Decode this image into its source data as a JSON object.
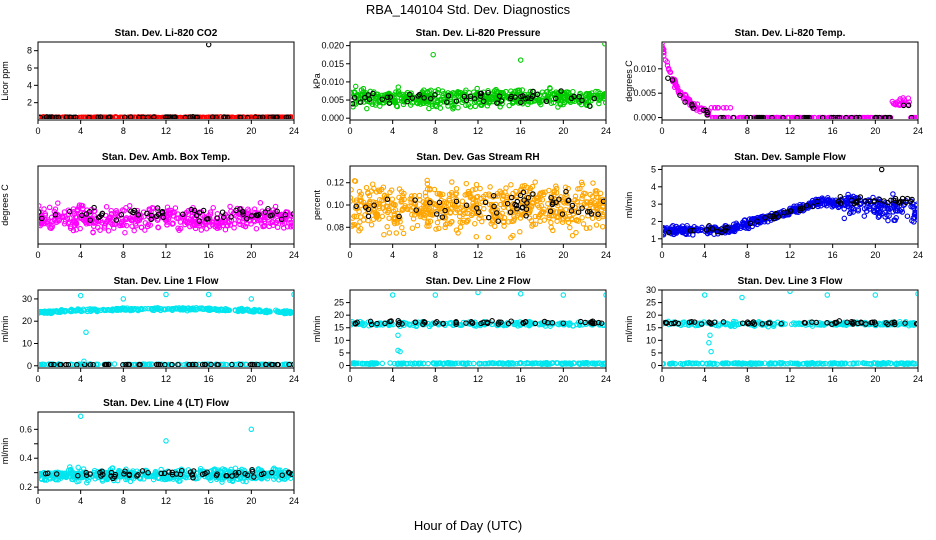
{
  "figure": {
    "title": "RBA_140104  Std. Dev. Diagnostics",
    "xlabel": "Hour of Day (UTC)"
  },
  "chart_data": [
    {
      "type": "scatter",
      "title": "Stan. Dev. Li-820 CO2",
      "ylabel": "Licor ppm",
      "xlim": [
        0,
        24
      ],
      "xticks": [
        0,
        4,
        8,
        12,
        16,
        20,
        24
      ],
      "ylim": [
        0,
        9
      ],
      "yticks": [
        2,
        4,
        6,
        8
      ],
      "series": [
        {
          "name": "red",
          "color": "#ff0000",
          "pattern": "band",
          "base": 0.3,
          "noise": 0.08,
          "n": 330
        },
        {
          "name": "black",
          "color": "#000000",
          "pattern": "band",
          "base": 0.32,
          "noise": 0.06,
          "n": 60
        },
        {
          "name": "outlier",
          "color": "#000000",
          "points": [
            [
              16.0,
              8.7
            ]
          ]
        }
      ]
    },
    {
      "type": "scatter",
      "title": "Stan. Dev. Li-820 Pressure",
      "ylabel": "kPa",
      "xlim": [
        0,
        24
      ],
      "xticks": [
        0,
        4,
        8,
        12,
        16,
        20,
        24
      ],
      "ylim": [
        -0.0005,
        0.021
      ],
      "yticks": [
        0.0,
        0.005,
        0.01,
        0.015,
        0.02
      ],
      "ytick_labels": [
        "0.000",
        "0.005",
        "0.010",
        "0.015",
        "0.020"
      ],
      "series": [
        {
          "name": "green",
          "color": "#00cc00",
          "pattern": "band",
          "base": 0.0055,
          "noise": 0.0035,
          "n": 520
        },
        {
          "name": "black",
          "color": "#000000",
          "pattern": "band",
          "base": 0.0055,
          "noise": 0.0025,
          "n": 55
        },
        {
          "name": "outliers",
          "color": "#00cc00",
          "points": [
            [
              7.8,
              0.0175
            ],
            [
              16.0,
              0.016
            ],
            [
              23.9,
              0.0205
            ]
          ]
        }
      ]
    },
    {
      "type": "scatter",
      "title": "Stan. Dev. Li-820 Temp.",
      "ylabel": "degrees C",
      "xlim": [
        0,
        24
      ],
      "xticks": [
        0,
        4,
        8,
        12,
        16,
        20,
        24
      ],
      "ylim": [
        -0.0005,
        0.0155
      ],
      "yticks": [
        0.0,
        0.005,
        0.01
      ],
      "ytick_labels": [
        "0.000",
        "0.005",
        "0.010"
      ],
      "series": [
        {
          "name": "magenta",
          "color": "#ff00ff",
          "pattern": "temp",
          "n": 300
        },
        {
          "name": "black",
          "color": "#000000",
          "pattern": "temp_black",
          "n": 50
        }
      ]
    },
    {
      "type": "scatter",
      "title": "Stan. Dev. Amb. Box Temp.",
      "ylabel": "degrees C",
      "xlim": [
        0,
        24
      ],
      "xticks": [
        0,
        4,
        8,
        12,
        16,
        20,
        24
      ],
      "ylim": [
        -1,
        10
      ],
      "yticks": [],
      "series": [
        {
          "name": "magenta",
          "color": "#ff00ff",
          "pattern": "band",
          "base": 2.6,
          "noise": 2.4,
          "n": 480
        },
        {
          "name": "black",
          "color": "#000000",
          "pattern": "band",
          "base": 3.2,
          "noise": 1.2,
          "n": 60
        }
      ]
    },
    {
      "type": "scatter",
      "title": "Stan. Dev. Gas Stream RH",
      "ylabel": "percent",
      "xlim": [
        0,
        24
      ],
      "xticks": [
        0,
        4,
        8,
        12,
        16,
        20,
        24
      ],
      "ylim": [
        0.065,
        0.135
      ],
      "yticks": [
        0.08,
        0.1,
        0.12
      ],
      "ytick_labels": [
        "0.08",
        "0.10",
        "0.12"
      ],
      "series": [
        {
          "name": "orange",
          "color": "#ffa500",
          "pattern": "band",
          "base": 0.098,
          "noise": 0.03,
          "n": 620
        },
        {
          "name": "black",
          "color": "#000000",
          "pattern": "band",
          "base": 0.098,
          "noise": 0.016,
          "n": 60
        }
      ]
    },
    {
      "type": "scatter",
      "title": "Stan. Dev. Sample Flow",
      "ylabel": "ml/min",
      "xlim": [
        0,
        24
      ],
      "xticks": [
        0,
        4,
        8,
        12,
        16,
        20,
        24
      ],
      "ylim": [
        0.7,
        5.2
      ],
      "yticks": [
        1,
        2,
        3,
        4,
        5
      ],
      "series": [
        {
          "name": "blue",
          "color": "#0000ee",
          "pattern": "sample",
          "n": 520
        },
        {
          "name": "black",
          "color": "#000000",
          "pattern": "sample_black",
          "n": 60
        },
        {
          "name": "outlier",
          "color": "#000000",
          "points": [
            [
              20.6,
              5.0
            ]
          ]
        }
      ]
    },
    {
      "type": "scatter",
      "title": "Stan. Dev. Line 1 Flow",
      "ylabel": "ml/min",
      "xlim": [
        0,
        24
      ],
      "xticks": [
        0,
        4,
        8,
        12,
        16,
        20,
        24
      ],
      "ylim": [
        -1,
        34
      ],
      "yticks": [
        0,
        10,
        20,
        30
      ],
      "series": [
        {
          "name": "cyan-high",
          "color": "#00e5ee",
          "pattern": "line1",
          "n": 320
        },
        {
          "name": "cyan-low",
          "color": "#00e5ee",
          "pattern": "band",
          "base": 0.6,
          "noise": 0.3,
          "n": 150
        },
        {
          "name": "black",
          "color": "#000000",
          "pattern": "band",
          "base": 0.5,
          "noise": 0.1,
          "n": 60
        },
        {
          "name": "outliers",
          "color": "#00e5ee",
          "points": [
            [
              4.0,
              31.5
            ],
            [
              4.5,
              15.0
            ],
            [
              4.3,
              2.0
            ],
            [
              8.0,
              30.0
            ],
            [
              12.0,
              32.0
            ],
            [
              16.0,
              32.0
            ],
            [
              20.0,
              30.0
            ],
            [
              24.0,
              32.0
            ]
          ]
        }
      ]
    },
    {
      "type": "scatter",
      "title": "Stan. Dev. Line 2 Flow",
      "ylabel": "ml/min",
      "xlim": [
        0,
        24
      ],
      "xticks": [
        0,
        4,
        8,
        12,
        16,
        20,
        24
      ],
      "ylim": [
        -1,
        30
      ],
      "yticks": [
        0,
        5,
        10,
        15,
        20,
        25
      ],
      "series": [
        {
          "name": "cyan-low",
          "color": "#00e5ee",
          "pattern": "band",
          "base": 0.8,
          "noise": 0.4,
          "n": 220
        },
        {
          "name": "cyan-mid",
          "color": "#00e5ee",
          "pattern": "band",
          "base": 16.5,
          "noise": 1.2,
          "n": 220
        },
        {
          "name": "black",
          "color": "#000000",
          "pattern": "band",
          "base": 17.0,
          "noise": 1.0,
          "n": 60
        },
        {
          "name": "outliers",
          "color": "#00e5ee",
          "points": [
            [
              4.0,
              28.0
            ],
            [
              4.5,
              6.0
            ],
            [
              4.7,
              5.5
            ],
            [
              4.5,
              12.0
            ],
            [
              8.0,
              28.0
            ],
            [
              12.0,
              29.0
            ],
            [
              16.0,
              28.5
            ],
            [
              20.0,
              28.0
            ],
            [
              24.0,
              28.0
            ]
          ]
        }
      ]
    },
    {
      "type": "scatter",
      "title": "Stan. Dev. Line 3 Flow",
      "ylabel": "ml/min",
      "xlim": [
        0,
        24
      ],
      "xticks": [
        0,
        4,
        8,
        12,
        16,
        20,
        24
      ],
      "ylim": [
        -1,
        30
      ],
      "yticks": [
        0,
        5,
        10,
        15,
        20,
        25,
        30
      ],
      "series": [
        {
          "name": "cyan-low",
          "color": "#00e5ee",
          "pattern": "band",
          "base": 0.8,
          "noise": 0.4,
          "n": 220
        },
        {
          "name": "cyan-mid",
          "color": "#00e5ee",
          "pattern": "band",
          "base": 16.5,
          "noise": 1.2,
          "n": 220
        },
        {
          "name": "black",
          "color": "#000000",
          "pattern": "band",
          "base": 17.0,
          "noise": 1.0,
          "n": 60
        },
        {
          "name": "outliers",
          "color": "#00e5ee",
          "points": [
            [
              4.0,
              28.0
            ],
            [
              4.4,
              9.0
            ],
            [
              4.6,
              5.5
            ],
            [
              4.5,
              12.0
            ],
            [
              7.5,
              27.0
            ],
            [
              12.0,
              29.5
            ],
            [
              15.5,
              28.0
            ],
            [
              20.0,
              28.0
            ],
            [
              24.0,
              28.5
            ]
          ]
        }
      ]
    },
    {
      "type": "scatter",
      "title": "Stan. Dev. Line 4 (LT) Flow",
      "ylabel": "ml/min",
      "xlim": [
        0,
        24
      ],
      "xticks": [
        0,
        4,
        8,
        12,
        16,
        20,
        24
      ],
      "ylim": [
        0.18,
        0.72
      ],
      "yticks": [
        0.2,
        0.3,
        0.4,
        0.5,
        0.6
      ],
      "ytick_labels": [
        "0.2",
        "",
        "0.4",
        "",
        "0.6"
      ],
      "series": [
        {
          "name": "cyan",
          "color": "#00e5ee",
          "pattern": "band",
          "base": 0.285,
          "noise": 0.06,
          "n": 520
        },
        {
          "name": "black",
          "color": "#000000",
          "pattern": "band",
          "base": 0.29,
          "noise": 0.035,
          "n": 60
        },
        {
          "name": "outliers",
          "color": "#00e5ee",
          "points": [
            [
              4.0,
              0.69
            ],
            [
              12.0,
              0.52
            ],
            [
              20.0,
              0.6
            ]
          ]
        }
      ]
    }
  ]
}
